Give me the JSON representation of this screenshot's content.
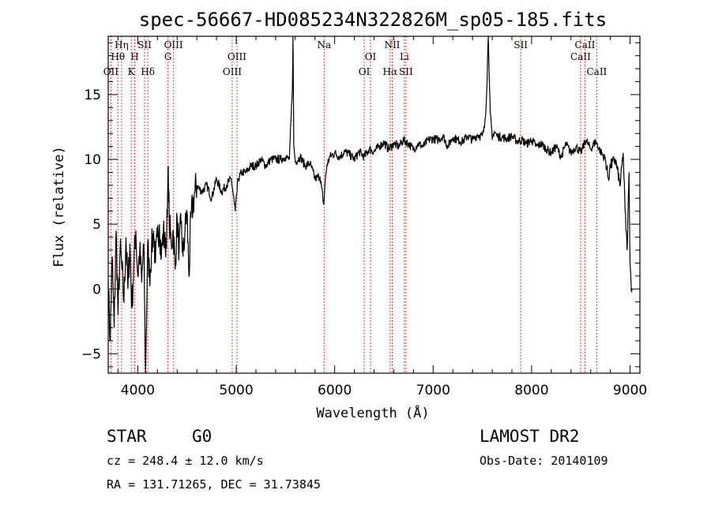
{
  "chart_data": {
    "type": "line",
    "title": "spec-56667-HD085234N322826M_sp05-185.fits",
    "xlabel": "Wavelength (Å)",
    "ylabel": "Flux (relative)",
    "xlim": [
      3700,
      9100
    ],
    "ylim": [
      -6.5,
      19.5
    ],
    "xticks": [
      4000,
      5000,
      6000,
      7000,
      8000,
      9000
    ],
    "yticks": [
      -5,
      0,
      5,
      10,
      15
    ],
    "xtick_labels": [
      "4000",
      "5000",
      "6000",
      "7000",
      "8000",
      "9000"
    ],
    "ytick_labels": [
      "−5",
      "0",
      "5",
      "10",
      "15"
    ],
    "grid": false,
    "series": [
      {
        "values_x": [
          3700,
          3720,
          3740,
          3760,
          3780,
          3800,
          3820,
          3840,
          3860,
          3880,
          3900,
          3920,
          3940,
          3960,
          3980,
          4000,
          4020,
          4040,
          4060,
          4080,
          4100,
          4120,
          4140,
          4160,
          4180,
          4200,
          4220,
          4240,
          4260,
          4280,
          4300,
          4310,
          4320,
          4340,
          4360,
          4380,
          4400,
          4420,
          4440,
          4460,
          4480,
          4500,
          4520,
          4540,
          4560,
          4580,
          4600,
          4650,
          4700,
          4750,
          4800,
          4850,
          4900,
          4950,
          4990,
          5020,
          5060,
          5100,
          5150,
          5200,
          5250,
          5300,
          5350,
          5400,
          5450,
          5500,
          5540,
          5570,
          5577,
          5585,
          5600,
          5650,
          5700,
          5750,
          5800,
          5850,
          5890,
          5900,
          5920,
          5950,
          6000,
          6050,
          6100,
          6150,
          6200,
          6250,
          6300,
          6350,
          6400,
          6450,
          6500,
          6550,
          6600,
          6650,
          6700,
          6750,
          6800,
          6850,
          6900,
          6950,
          7000,
          7050,
          7100,
          7150,
          7200,
          7250,
          7300,
          7350,
          7400,
          7450,
          7500,
          7520,
          7540,
          7560,
          7580,
          7600,
          7620,
          7650,
          7700,
          7750,
          7800,
          7850,
          7900,
          7950,
          8000,
          8050,
          8100,
          8150,
          8200,
          8250,
          8300,
          8350,
          8400,
          8450,
          8500,
          8550,
          8600,
          8650,
          8700,
          8750,
          8780,
          8800,
          8850,
          8900,
          8930,
          8950,
          8970,
          8990,
          9000,
          9010,
          9020
        ],
        "values_y": [
          0.5,
          -4.0,
          2.5,
          -3.0,
          4.5,
          -2.0,
          3.0,
          1.5,
          -1.0,
          4.0,
          0.0,
          3.5,
          -1.5,
          2.0,
          4.5,
          1.0,
          3.0,
          0.5,
          3.5,
          -6.5,
          3.5,
          1.0,
          3.0,
          4.5,
          2.0,
          4.0,
          5.0,
          2.5,
          4.5,
          3.0,
          5.5,
          9.5,
          5.0,
          3.5,
          4.5,
          1.5,
          5.5,
          3.0,
          5.0,
          2.5,
          4.5,
          6.0,
          1.0,
          5.5,
          6.5,
          7.5,
          8.0,
          7.5,
          8.0,
          7.0,
          8.5,
          7.5,
          8.0,
          8.5,
          6.0,
          8.5,
          9.0,
          9.0,
          9.5,
          9.5,
          10.0,
          9.5,
          10.0,
          10.0,
          10.0,
          10.2,
          10.0,
          15.5,
          19.5,
          11.0,
          9.8,
          10.2,
          9.5,
          9.7,
          8.5,
          8.7,
          6.5,
          8.0,
          9.5,
          10.2,
          10.5,
          10.2,
          10.6,
          10.4,
          10.0,
          10.6,
          10.2,
          10.8,
          10.6,
          11.0,
          11.3,
          10.8,
          11.2,
          11.0,
          11.5,
          11.2,
          10.8,
          11.2,
          11.0,
          11.5,
          11.6,
          11.5,
          11.8,
          11.0,
          11.7,
          11.5,
          11.4,
          11.8,
          11.5,
          11.9,
          11.8,
          12.4,
          14.5,
          19.5,
          13.5,
          11.5,
          12.2,
          11.8,
          11.7,
          11.6,
          11.8,
          11.4,
          11.5,
          11.2,
          11.5,
          11.0,
          11.2,
          10.8,
          10.5,
          11.0,
          10.2,
          11.2,
          10.5,
          11.0,
          10.5,
          11.5,
          10.8,
          11.4,
          10.6,
          10.0,
          8.5,
          9.5,
          10.0,
          8.0,
          10.5,
          6.0,
          3.0,
          9.0,
          2.0,
          0.5,
          0.0
        ]
      }
    ],
    "spectral_lines": [
      {
        "label": "OII",
        "wavelength": 3727,
        "row": 3
      },
      {
        "label": "Hθ",
        "wavelength": 3798,
        "row": 2
      },
      {
        "label": "Hη",
        "wavelength": 3835,
        "row": 1
      },
      {
        "label": "K",
        "wavelength": 3934,
        "row": 3
      },
      {
        "label": "H",
        "wavelength": 3969,
        "row": 2
      },
      {
        "label": "SII",
        "wavelength": 4069,
        "row": 1
      },
      {
        "label": "Hδ",
        "wavelength": 4102,
        "row": 3
      },
      {
        "label": "OIII",
        "wavelength": 4363,
        "row": 1
      },
      {
        "label": "G",
        "wavelength": 4307,
        "row": 2
      },
      {
        "label": "OIII",
        "wavelength": 4959,
        "row": 3
      },
      {
        "label": "OIII",
        "wavelength": 5007,
        "row": 2
      },
      {
        "label": "Na",
        "wavelength": 5893,
        "row": 1
      },
      {
        "label": "OI",
        "wavelength": 6300,
        "row": 3
      },
      {
        "label": "OI",
        "wavelength": 6364,
        "row": 2
      },
      {
        "label": "NII",
        "wavelength": 6584,
        "row": 1
      },
      {
        "label": "Hα",
        "wavelength": 6563,
        "row": 3
      },
      {
        "label": "Li",
        "wavelength": 6708,
        "row": 2
      },
      {
        "label": "SII",
        "wavelength": 6724,
        "row": 3
      },
      {
        "label": "SII",
        "wavelength": 7890,
        "row": 1
      },
      {
        "label": "CaII",
        "wavelength": 8498,
        "row": 2
      },
      {
        "label": "CaII",
        "wavelength": 8542,
        "row": 1
      },
      {
        "label": "CaII",
        "wavelength": 8662,
        "row": 3
      }
    ],
    "line_color": "#000000",
    "marker_color": "#cc0000"
  },
  "info": {
    "object_class": "STAR",
    "subclass": "G0",
    "survey": "LAMOST DR2",
    "cz": "cz = 248.4 ± 12.0 km/s",
    "obs_date": "Obs-Date: 20140109",
    "coords": "RA = 131.71265, DEC =  31.73845"
  }
}
